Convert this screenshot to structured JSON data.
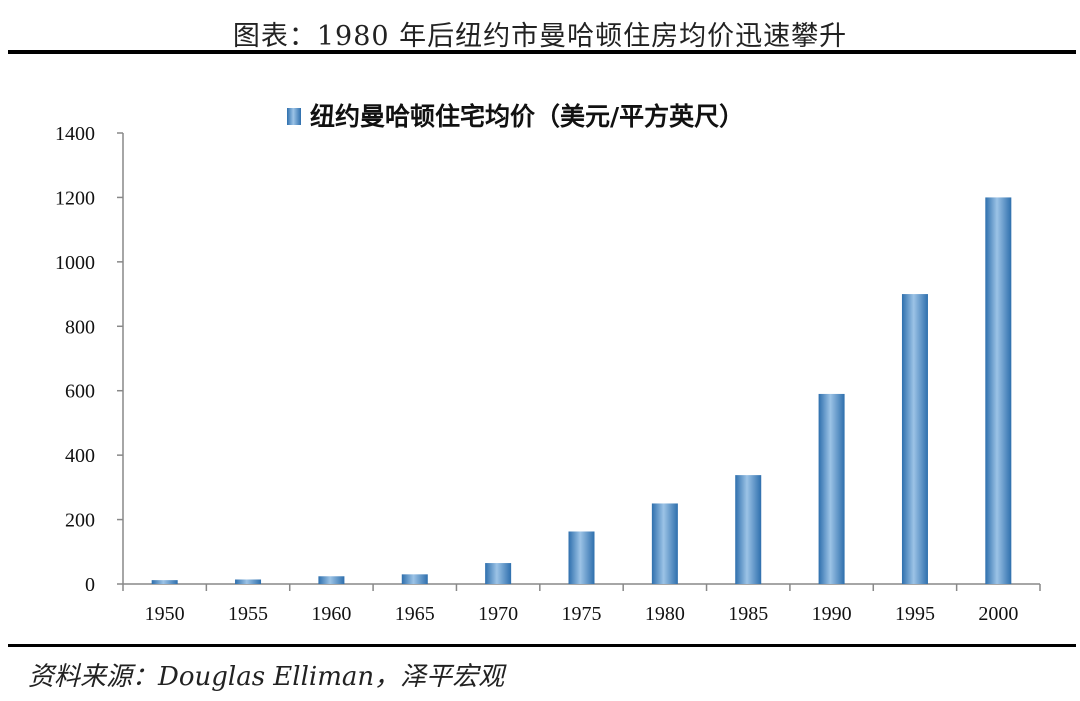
{
  "figure_title": "图表：1980 年后纽约市曼哈顿住房均价迅速攀升",
  "source_note": "资料来源：Douglas Elliman，泽平宏观",
  "colors": {
    "bar_light": "#9cc3e6",
    "bar_mid": "#5b9bd5",
    "bar_dark": "#2e6fad",
    "axis": "#888888",
    "rule": "#000000"
  },
  "chart_data": {
    "type": "bar",
    "title": "",
    "xlabel": "",
    "ylabel": "",
    "categories": [
      "1950",
      "1955",
      "1960",
      "1965",
      "1970",
      "1975",
      "1980",
      "1985",
      "1990",
      "1995",
      "2000"
    ],
    "series": [
      {
        "name": "纽约曼哈顿住宅均价（美元/平方英尺）",
        "values": [
          12,
          14,
          24,
          30,
          65,
          163,
          250,
          338,
          590,
          900,
          1200
        ]
      }
    ],
    "ylim": [
      0,
      1400
    ],
    "yticks": [
      0,
      200,
      400,
      600,
      800,
      1000,
      1200,
      1400
    ],
    "grid": false,
    "legend_position": "top-center"
  }
}
